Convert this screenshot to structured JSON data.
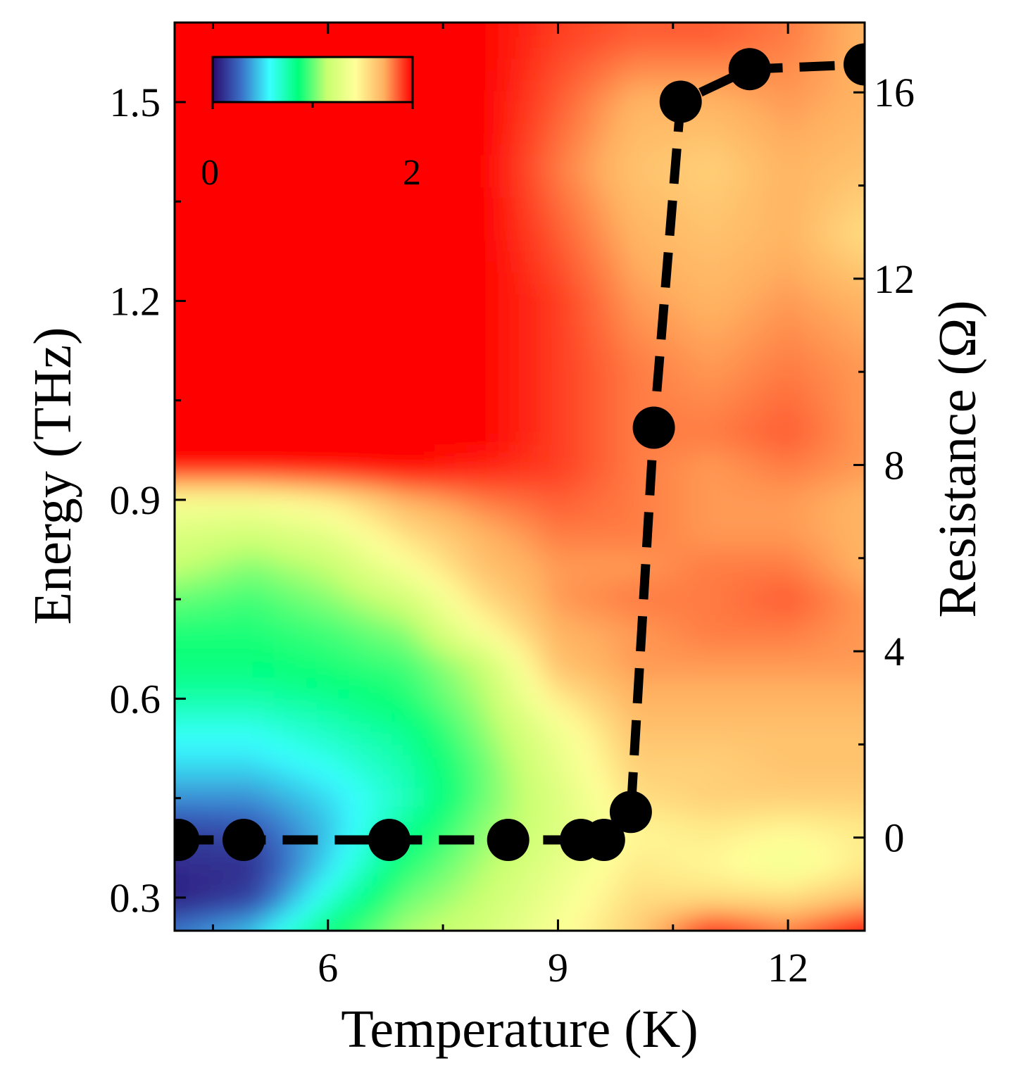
{
  "chart_data": {
    "type": "heatmap",
    "xlabel": "Temperature (K)",
    "ylabel": "Energy (THz)",
    "y2label": "Resistance (Ω)",
    "xlim": [
      4.0,
      13.0
    ],
    "ylim": [
      0.25,
      1.62
    ],
    "y2lim": [
      -2.0,
      17.5
    ],
    "x_ticks": [
      6,
      9,
      12
    ],
    "x_tick_labels": [
      "6",
      "9",
      "12"
    ],
    "x_minor_ticks": [
      4.5,
      7.5,
      10.5
    ],
    "y_ticks": [
      0.3,
      0.6,
      0.9,
      1.2,
      1.5
    ],
    "y_tick_labels": [
      "0.3",
      "0.6",
      "0.9",
      "1.2",
      "1.5"
    ],
    "y_minor_ticks": [
      0.45,
      0.75,
      1.05,
      1.35
    ],
    "y2_ticks": [
      0,
      4,
      8,
      12,
      16
    ],
    "y2_tick_labels": [
      "0",
      "4",
      "8",
      "12",
      "16"
    ],
    "y2_minor_ticks": [
      2,
      6,
      10,
      14
    ],
    "colorbar": {
      "min": 0,
      "max": 2,
      "tick_labels": [
        "0",
        "2"
      ],
      "colormap": [
        "#2b0a6e",
        "#3a70c8",
        "#39ffff",
        "#00ff7a",
        "#c8ff70",
        "#ffff99",
        "#ffb060",
        "#ff0000"
      ],
      "placement": "top-left"
    },
    "heatmap": {
      "temperatures": [
        4.0,
        5.0,
        6.0,
        7.0,
        8.0,
        9.0,
        10.0,
        11.0,
        12.0,
        13.0
      ],
      "energies": [
        0.25,
        0.3,
        0.35,
        0.4,
        0.45,
        0.5,
        0.55,
        0.6,
        0.65,
        0.7,
        0.75,
        0.8,
        0.85,
        0.9,
        0.95,
        1.0,
        1.1,
        1.2,
        1.3,
        1.4,
        1.5,
        1.6
      ],
      "values": [
        [
          0.3,
          0.45,
          0.85,
          1.1,
          1.2,
          1.4,
          1.6,
          1.95,
          1.8,
          2.0
        ],
        [
          0.05,
          0.15,
          0.65,
          1.0,
          1.15,
          1.35,
          1.55,
          1.55,
          1.55,
          1.65
        ],
        [
          0.1,
          0.1,
          0.5,
          0.9,
          1.1,
          1.3,
          1.5,
          1.45,
          1.35,
          1.5
        ],
        [
          0.15,
          0.2,
          0.45,
          0.8,
          1.05,
          1.25,
          1.45,
          1.5,
          1.45,
          1.5
        ],
        [
          0.35,
          0.35,
          0.5,
          0.7,
          1.0,
          1.25,
          1.55,
          1.6,
          1.6,
          1.6
        ],
        [
          0.5,
          0.5,
          0.6,
          0.75,
          1.0,
          1.3,
          1.6,
          1.6,
          1.65,
          1.65
        ],
        [
          0.6,
          0.6,
          0.7,
          0.8,
          1.05,
          1.35,
          1.65,
          1.65,
          1.65,
          1.65
        ],
        [
          0.75,
          0.75,
          0.8,
          0.9,
          1.1,
          1.5,
          1.7,
          1.7,
          1.7,
          1.7
        ],
        [
          0.85,
          0.85,
          0.9,
          0.95,
          1.15,
          1.65,
          1.75,
          1.75,
          1.75,
          1.75
        ],
        [
          0.9,
          0.9,
          0.95,
          1.05,
          1.4,
          1.7,
          1.75,
          1.8,
          1.8,
          1.75
        ],
        [
          1.0,
          0.95,
          1.05,
          1.2,
          1.55,
          1.75,
          1.8,
          1.8,
          1.85,
          1.75
        ],
        [
          1.15,
          1.05,
          1.15,
          1.4,
          1.65,
          1.75,
          1.75,
          1.8,
          1.8,
          1.7
        ],
        [
          1.25,
          1.2,
          1.3,
          1.55,
          1.7,
          1.8,
          1.8,
          1.75,
          1.75,
          1.7
        ],
        [
          1.4,
          1.4,
          1.5,
          1.7,
          1.8,
          1.85,
          1.8,
          1.75,
          1.75,
          1.7
        ],
        [
          2.0,
          2.0,
          2.0,
          2.0,
          1.95,
          1.9,
          1.8,
          1.75,
          1.8,
          1.75
        ],
        [
          2.0,
          2.0,
          2.0,
          2.0,
          2.0,
          1.9,
          1.8,
          1.8,
          1.85,
          1.75
        ],
        [
          2.0,
          2.0,
          2.0,
          2.0,
          2.0,
          1.9,
          1.8,
          1.75,
          1.8,
          1.75
        ],
        [
          2.0,
          2.0,
          2.0,
          2.0,
          2.0,
          1.9,
          1.75,
          1.7,
          1.75,
          1.7
        ],
        [
          2.0,
          2.0,
          2.0,
          2.0,
          2.0,
          1.85,
          1.7,
          1.65,
          1.7,
          1.55
        ],
        [
          2.0,
          2.0,
          2.0,
          2.0,
          2.0,
          1.8,
          1.65,
          1.6,
          1.7,
          1.65
        ],
        [
          2.0,
          2.0,
          2.0,
          2.0,
          2.0,
          1.85,
          1.7,
          1.7,
          1.75,
          1.7
        ],
        [
          2.0,
          2.0,
          2.0,
          2.0,
          2.0,
          1.9,
          1.85,
          1.85,
          1.8,
          1.7
        ]
      ]
    },
    "series": [
      {
        "axis": "right",
        "style": "dashed line with large filled black circles",
        "x": [
          4.05,
          4.9,
          6.8,
          8.35,
          9.3,
          9.6,
          9.95,
          10.25,
          10.6,
          11.5,
          13.0
        ],
        "y": [
          -0.05,
          -0.05,
          -0.05,
          -0.05,
          -0.05,
          -0.05,
          0.55,
          8.8,
          15.8,
          16.5,
          16.6
        ]
      }
    ]
  }
}
